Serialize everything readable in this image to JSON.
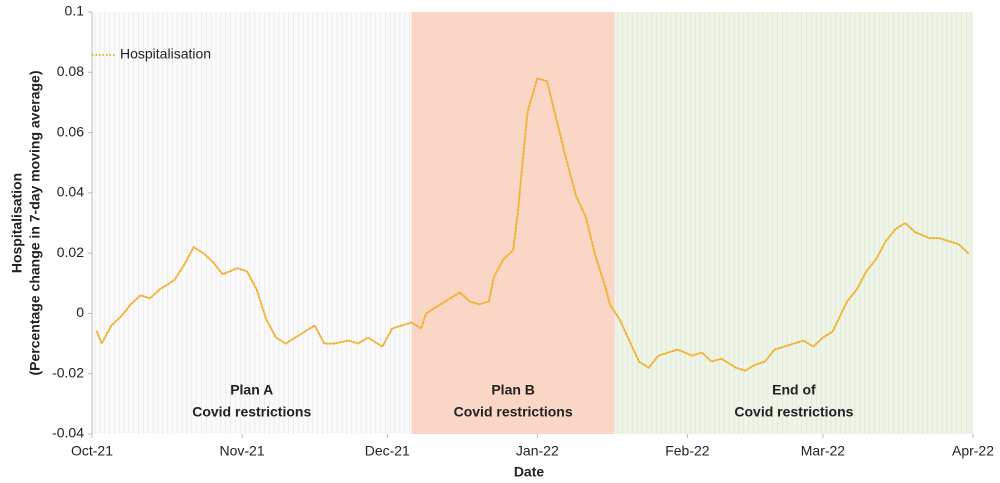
{
  "chart_data": {
    "type": "line",
    "x_label": "Date",
    "y_label": [
      "Hospitalisation",
      "(Percentage change in 7-day moving average)"
    ],
    "xlim": [
      0,
      182
    ],
    "xticks": [
      {
        "value": 0,
        "label": "Oct-21"
      },
      {
        "value": 31,
        "label": "Nov-21"
      },
      {
        "value": 61,
        "label": "Dec-21"
      },
      {
        "value": 92,
        "label": "Jan-22"
      },
      {
        "value": 123,
        "label": "Feb-22"
      },
      {
        "value": 151,
        "label": "Mar-22"
      },
      {
        "value": 182,
        "label": "Apr-22"
      }
    ],
    "ylim": [
      -0.04,
      0.1
    ],
    "yticks": [
      -0.04,
      -0.02,
      0,
      0.02,
      0.04,
      0.06,
      0.08,
      0.1
    ],
    "legend": "top-left",
    "regions": [
      {
        "lines": [
          "Plan A",
          "Covid restrictions"
        ],
        "start": 0,
        "end": 66,
        "color": "#fafafa"
      },
      {
        "lines": [
          "Plan B",
          "Covid restrictions"
        ],
        "start": 66,
        "end": 108,
        "color": "#f9d6c6"
      },
      {
        "lines": [
          "End of",
          "Covid restrictions"
        ],
        "start": 108,
        "end": 182,
        "color": "#eef4e7"
      }
    ],
    "series": [
      {
        "name": "Hospitalisation",
        "color": "#f2b233",
        "x": [
          1,
          2,
          4,
          6,
          8,
          10,
          12,
          14,
          17,
          19,
          21,
          23,
          25,
          27,
          30,
          32,
          34,
          36,
          38,
          40,
          42,
          44,
          46,
          48,
          50,
          53,
          55,
          57,
          60,
          62,
          64,
          66,
          68,
          69,
          72,
          74,
          76,
          78,
          80,
          82,
          83,
          85,
          87,
          88,
          89,
          90,
          92,
          94,
          96,
          98,
          100,
          102,
          104,
          106,
          107,
          109,
          111,
          113,
          115,
          117,
          119,
          121,
          124,
          126,
          128,
          130,
          133,
          135,
          137,
          139,
          141,
          143,
          145,
          147,
          149,
          151,
          153,
          156,
          158,
          160,
          162,
          164,
          166,
          168,
          170,
          173,
          175,
          177,
          179,
          181
        ],
        "values": [
          -0.006,
          -0.01,
          -0.004,
          -0.001,
          0.003,
          0.006,
          0.005,
          0.008,
          0.011,
          0.016,
          0.022,
          0.02,
          0.017,
          0.013,
          0.015,
          0.014,
          0.008,
          -0.002,
          -0.008,
          -0.01,
          -0.008,
          -0.006,
          -0.004,
          -0.01,
          -0.01,
          -0.009,
          -0.01,
          -0.008,
          -0.011,
          -0.005,
          -0.004,
          -0.003,
          -0.005,
          0.0,
          0.003,
          0.005,
          0.007,
          0.004,
          0.003,
          0.004,
          0.012,
          0.018,
          0.021,
          0.034,
          0.051,
          0.067,
          0.078,
          0.077,
          0.064,
          0.051,
          0.039,
          0.032,
          0.019,
          0.009,
          0.003,
          -0.002,
          -0.009,
          -0.016,
          -0.018,
          -0.014,
          -0.013,
          -0.012,
          -0.014,
          -0.013,
          -0.016,
          -0.015,
          -0.018,
          -0.019,
          -0.017,
          -0.016,
          -0.012,
          -0.011,
          -0.01,
          -0.009,
          -0.011,
          -0.008,
          -0.006,
          0.004,
          0.008,
          0.014,
          0.018,
          0.024,
          0.028,
          0.03,
          0.027,
          0.025,
          0.025,
          0.024,
          0.023,
          0.02
        ]
      }
    ]
  }
}
